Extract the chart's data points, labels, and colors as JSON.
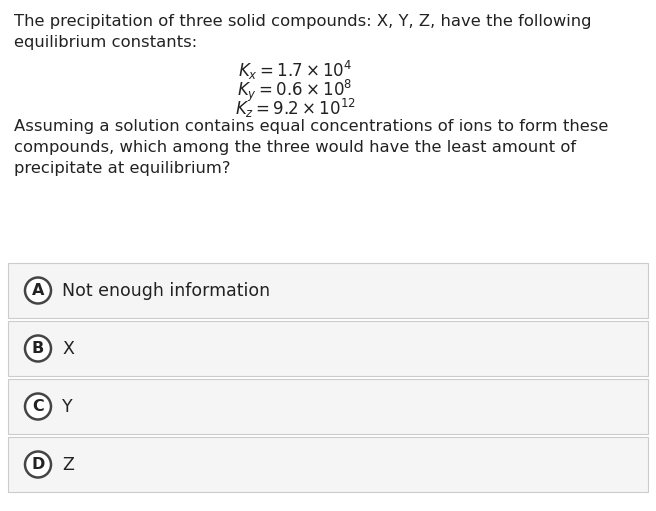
{
  "background_color": "#ffffff",
  "option_bg": "#f5f5f5",
  "border_color": "#cccccc",
  "text_color": "#222222",
  "circle_edge_color": "#444444",
  "circle_fill_color": "#ffffff",
  "question_line1": "The precipitation of three solid compounds: X, Y, Z, have the following",
  "question_line2": "equilibrium constants:",
  "eq_lines": [
    {
      "math": "$K_x = 1.7 \\times 10^{4}$"
    },
    {
      "math": "$K_y = 0.6 \\times 10^{8}$"
    },
    {
      "math": "$K_z = 9.2 \\times 10^{12}$"
    }
  ],
  "assume_line1": "Assuming a solution contains equal concentrations of ions to form these",
  "assume_line2": "compounds, which among the three would have the least amount of",
  "assume_line3": "precipitate at equilibrium?",
  "options": [
    {
      "letter": "A",
      "text": "Not enough information"
    },
    {
      "letter": "B",
      "text": "X"
    },
    {
      "letter": "C",
      "text": "Y"
    },
    {
      "letter": "D",
      "text": "Z"
    }
  ],
  "font_size_body": 11.8,
  "font_size_eq": 12.0,
  "font_size_option_text": 12.5,
  "font_size_letter": 11.5,
  "fig_width": 6.56,
  "fig_height": 5.11,
  "dpi": 100
}
